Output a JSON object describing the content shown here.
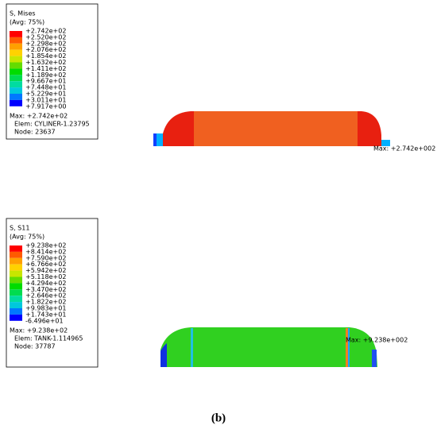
{
  "panels": [
    {
      "legend": {
        "title": "S, Mises",
        "subtitle": "(Avg: 75%)",
        "levels": [
          "+2.742e+02",
          "+2.520e+02",
          "+2.298e+02",
          "+2.076e+02",
          "+1.854e+02",
          "+1.632e+02",
          "+1.411e+02",
          "+1.189e+02",
          "+9.667e+01",
          "+7.448e+01",
          "+5.229e+01",
          "+3.011e+01",
          "+7.917e+00"
        ],
        "max": "Max: +2.742e+02",
        "elem": "Elem: CYLINER-1.23795",
        "node": "Node: 23637"
      },
      "annotation": "Max: +2.742e+002"
    },
    {
      "legend": {
        "title": "S, S11",
        "subtitle": "(Avg: 75%)",
        "levels": [
          "+9.238e+02",
          "+8.414e+02",
          "+7.590e+02",
          "+6.766e+02",
          "+5.942e+02",
          "+5.118e+02",
          "+4.294e+02",
          "+3.470e+02",
          "+2.646e+02",
          "+1.822e+02",
          "+9.983e+01",
          "+1.743e+01",
          "-6.496e+01"
        ],
        "max": "Max: +9.238e+02",
        "elem": "Elem: TANK-1.114965",
        "node": "Node: 37787"
      },
      "annotation": "Max: +9.238e+002"
    }
  ],
  "caption": "(b)"
}
